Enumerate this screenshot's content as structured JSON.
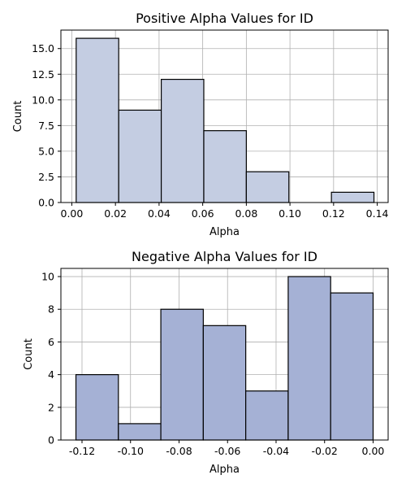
{
  "chart_data": [
    {
      "type": "bar",
      "title": "Positive Alpha Values for ID",
      "xlabel": "Alpha",
      "ylabel": "Count",
      "bin_edges": [
        0.002,
        0.0215,
        0.041,
        0.0605,
        0.08,
        0.0995,
        0.119,
        0.1385
      ],
      "values": [
        16,
        9,
        12,
        7,
        3,
        0,
        1
      ],
      "xlim": [
        -0.005,
        0.145
      ],
      "ylim": [
        0,
        16.8
      ],
      "xticks": [
        0.0,
        0.02,
        0.04,
        0.06,
        0.08,
        0.1,
        0.12,
        0.14
      ],
      "xtick_labels": [
        "0.00",
        "0.02",
        "0.04",
        "0.06",
        "0.08",
        "0.10",
        "0.12",
        "0.14"
      ],
      "yticks": [
        0.0,
        2.5,
        5.0,
        7.5,
        10.0,
        12.5,
        15.0
      ],
      "ytick_labels": [
        "0.0",
        "2.5",
        "5.0",
        "7.5",
        "10.0",
        "12.5",
        "15.0"
      ],
      "bar_color": "#c4cde2",
      "grid": true
    },
    {
      "type": "bar",
      "title": "Negative Alpha Values for ID",
      "xlabel": "Alpha",
      "ylabel": "Count",
      "bin_edges": [
        -0.1225,
        -0.105,
        -0.0875,
        -0.07,
        -0.0525,
        -0.035,
        -0.0175,
        0.0
      ],
      "values": [
        4,
        1,
        8,
        7,
        3,
        10,
        9
      ],
      "xlim": [
        -0.1287,
        0.0062
      ],
      "ylim": [
        0,
        10.5
      ],
      "xticks": [
        -0.12,
        -0.1,
        -0.08,
        -0.06,
        -0.04,
        -0.02,
        0.0
      ],
      "xtick_labels": [
        "-0.12",
        "-0.10",
        "-0.08",
        "-0.06",
        "-0.04",
        "-0.02",
        "0.00"
      ],
      "yticks": [
        0,
        2,
        4,
        6,
        8,
        10
      ],
      "ytick_labels": [
        "0",
        "2",
        "4",
        "6",
        "8",
        "10"
      ],
      "bar_color": "#a5b1d5",
      "grid": true
    }
  ]
}
